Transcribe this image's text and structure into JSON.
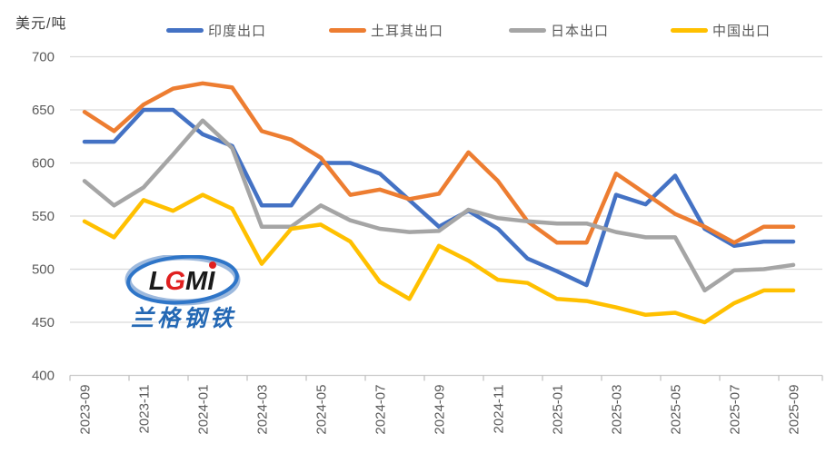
{
  "unit_label": "美元/吨",
  "colors": {
    "grid": "#d9d9d9",
    "axis_line": "#c9c9c9",
    "tick": "#bfbfbf",
    "axis_text": "#595959"
  },
  "logo": {
    "text_latin": "LGMI",
    "text_cn": "兰格钢铁",
    "ring_color": "#2e75c8",
    "latin_color": "#1a1a1a",
    "accent_color": "#e02020",
    "cn_color": "#2468b4"
  },
  "chart_data": {
    "type": "line",
    "title": "",
    "xlabel": "",
    "ylabel": "美元/吨",
    "ylim": [
      400,
      700
    ],
    "ytick_step": 50,
    "grid": true,
    "legend_position": "top",
    "x": [
      "2023-09",
      "2023-10",
      "2023-11",
      "2023-12",
      "2024-01",
      "2024-02",
      "2024-03",
      "2024-04",
      "2024-05",
      "2024-06",
      "2024-07",
      "2024-08",
      "2024-09",
      "2024-10",
      "2024-11",
      "2024-12",
      "2025-01",
      "2025-02",
      "2025-03",
      "2025-04",
      "2025-05",
      "2025-06",
      "2025-07",
      "2025-08",
      "2025-09"
    ],
    "x_tick_labels": [
      "2023-09",
      "2023-11",
      "2024-01",
      "2024-03",
      "2024-05",
      "2024-07",
      "2024-09",
      "2024-11",
      "2025-01",
      "2025-03",
      "2025-05",
      "2025-07",
      "2025-09"
    ],
    "series": [
      {
        "id": "india",
        "name": "印度出口",
        "color": "#4472c4",
        "values": [
          620,
          620,
          650,
          650,
          627,
          616,
          560,
          560,
          600,
          600,
          590,
          565,
          540,
          555,
          538,
          510,
          498,
          485,
          570,
          561,
          588,
          538,
          522,
          526,
          526
        ]
      },
      {
        "id": "turkey",
        "name": "土耳其出口",
        "color": "#ed7d31",
        "values": [
          648,
          630,
          655,
          670,
          675,
          671,
          630,
          622,
          605,
          570,
          575,
          566,
          571,
          610,
          583,
          545,
          525,
          525,
          590,
          571,
          552,
          540,
          525,
          540,
          540
        ]
      },
      {
        "id": "japan",
        "name": "日本出口",
        "color": "#a5a5a5",
        "values": [
          583,
          560,
          577,
          608,
          640,
          614,
          540,
          540,
          560,
          546,
          538,
          535,
          536,
          556,
          548,
          545,
          543,
          543,
          535,
          530,
          530,
          480,
          499,
          500,
          504
        ]
      },
      {
        "id": "china",
        "name": "中国出口",
        "color": "#ffc000",
        "values": [
          545,
          530,
          565,
          555,
          570,
          557,
          505,
          538,
          542,
          526,
          488,
          472,
          522,
          508,
          490,
          487,
          472,
          470,
          464,
          457,
          459,
          450,
          468,
          480,
          480
        ]
      }
    ]
  }
}
